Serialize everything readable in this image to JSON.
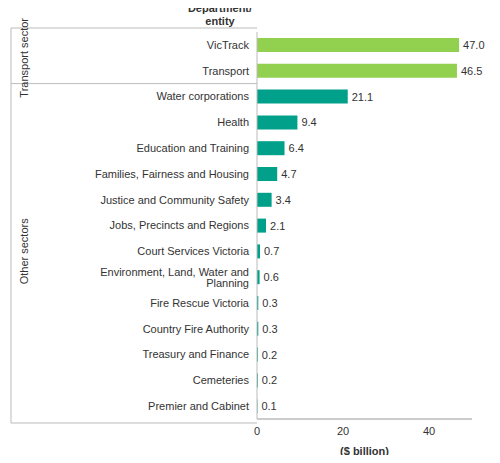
{
  "chart_data": {
    "type": "bar",
    "orientation": "horizontal",
    "stacked": true,
    "data_labels": true,
    "grid": false,
    "y_label": "Department/ entity",
    "x_label": "($ billion)",
    "categories": [
      "VicTrack",
      "Transport",
      "Water corporations",
      "Health",
      "Education and Training",
      "Families, Fairness and Housing",
      "Justice and Community Safety",
      "Jobs, Precincts and Regions",
      "Court Services Victoria",
      "Environment, Land, Water and Planning",
      "Fire Rescue Victoria",
      "Country Fire Authority",
      "Treasury and Finance",
      "Cemeteries",
      "Premier and Cabinet"
    ],
    "series": [
      {
        "name": "Transport sector",
        "color": "#92d050",
        "values": [
          47.0,
          46.5,
          null,
          null,
          null,
          null,
          null,
          null,
          null,
          null,
          null,
          null,
          null,
          null,
          null
        ],
        "value_labels": [
          "47.0",
          "46.5",
          null,
          null,
          null,
          null,
          null,
          null,
          null,
          null,
          null,
          null,
          null,
          null,
          null
        ]
      },
      {
        "name": "Other sectors",
        "color": "#00a08a",
        "values": [
          null,
          null,
          21.1,
          9.4,
          6.4,
          4.7,
          3.4,
          2.1,
          0.7,
          0.6,
          0.3,
          0.3,
          0.2,
          0.2,
          0.1
        ]
      }
    ],
    "xlim": [
      0,
      50
    ],
    "xticks": [
      0,
      20,
      40
    ]
  }
}
